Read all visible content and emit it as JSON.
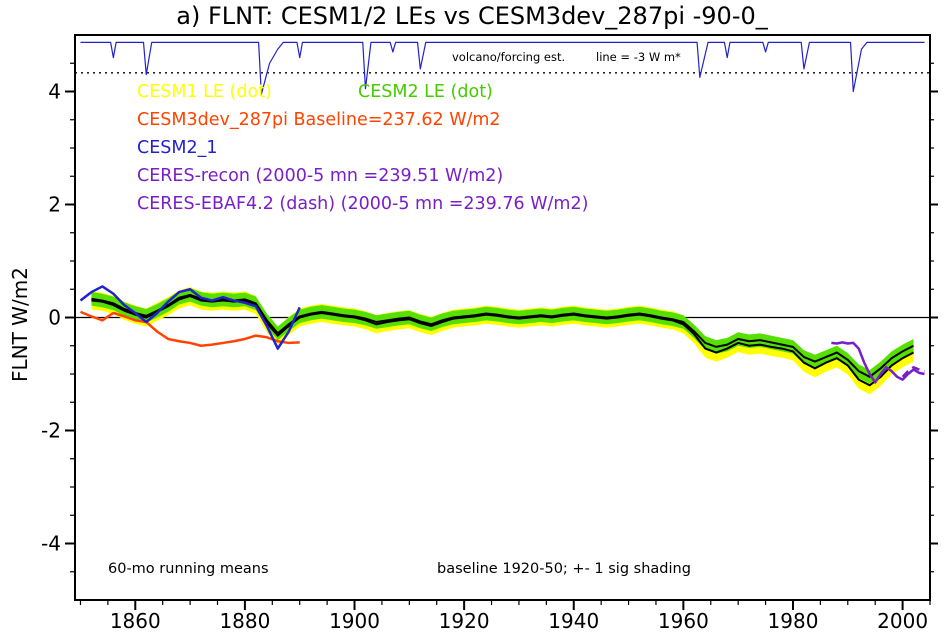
{
  "annotations": {
    "volcano_note": "volcano/forcing est.",
    "line_note": "line = -3 W m*",
    "bottom_left": "60-mo running means",
    "bottom_right": "baseline 1920-50; +- 1 sig shading"
  },
  "chart_data": {
    "type": "line",
    "title": "a) FLNT: CESM1/2 LEs vs CESM3dev_287pi -90-0_",
    "xlabel": "",
    "ylabel": "FLNT W/m2",
    "xlim": [
      1849,
      2005
    ],
    "ylim": [
      -5,
      5
    ],
    "x_major_ticks": [
      1860,
      1880,
      1900,
      1920,
      1940,
      1960,
      1980,
      2000
    ],
    "x_minor_step": 5,
    "y_major_ticks": [
      -4,
      -2,
      0,
      2,
      4
    ],
    "y_minor_step": 0.5,
    "grid": false,
    "reference_lines": {
      "zero": 0,
      "dotted": 4.33
    },
    "legend_position": "upper-left-inside",
    "legend": [
      {
        "label": "CESM1 LE (dot)",
        "color": "#ffff00"
      },
      {
        "label": "CESM2 LE (dot)",
        "color": "#44cc00"
      },
      {
        "label": "CESM3dev_287pi Baseline=237.62 W/m2",
        "color": "#ff4400"
      },
      {
        "label": "CESM2_1",
        "color": "#2222cc"
      },
      {
        "label": "CERES-recon (2000-5 mn =239.51 W/m2)",
        "color": "#7a1fc8"
      },
      {
        "label": "CERES-EBAF4.2 (dash) (2000-5 mn =239.76 W/m2)",
        "color": "#7a1fc8"
      }
    ],
    "series": [
      {
        "name": "CESM1 LE ensemble mean",
        "type": "band",
        "band_color": "#ffff00",
        "line_color": "#000000",
        "halfwidth": 0.16,
        "x": [
          1852,
          1854,
          1856,
          1858,
          1860,
          1862,
          1864,
          1866,
          1868,
          1870,
          1872,
          1874,
          1876,
          1878,
          1880,
          1882,
          1884,
          1886,
          1888,
          1890,
          1892,
          1894,
          1896,
          1898,
          1900,
          1902,
          1904,
          1906,
          1908,
          1910,
          1912,
          1914,
          1916,
          1918,
          1920,
          1922,
          1924,
          1926,
          1928,
          1930,
          1932,
          1934,
          1936,
          1938,
          1940,
          1942,
          1944,
          1946,
          1948,
          1950,
          1952,
          1954,
          1956,
          1958,
          1960,
          1962,
          1964,
          1966,
          1968,
          1970,
          1972,
          1974,
          1976,
          1978,
          1980,
          1982,
          1984,
          1986,
          1988,
          1990,
          1992,
          1994,
          1996,
          1998,
          2000,
          2002
        ],
        "y": [
          0.3,
          0.28,
          0.22,
          0.12,
          0.05,
          0.0,
          0.1,
          0.2,
          0.32,
          0.38,
          0.3,
          0.28,
          0.3,
          0.28,
          0.3,
          0.22,
          -0.1,
          -0.32,
          -0.15,
          0.0,
          0.05,
          0.08,
          0.05,
          0.02,
          0.0,
          -0.05,
          -0.12,
          -0.08,
          -0.05,
          -0.03,
          -0.1,
          -0.15,
          -0.08,
          -0.02,
          0.0,
          0.02,
          0.05,
          0.03,
          0.0,
          -0.02,
          0.0,
          0.02,
          0.0,
          0.03,
          0.05,
          0.02,
          0.0,
          -0.02,
          0.0,
          0.03,
          0.05,
          0.02,
          -0.02,
          -0.05,
          -0.12,
          -0.3,
          -0.55,
          -0.62,
          -0.55,
          -0.45,
          -0.5,
          -0.48,
          -0.52,
          -0.55,
          -0.6,
          -0.8,
          -0.9,
          -0.8,
          -0.72,
          -0.85,
          -1.1,
          -1.2,
          -1.05,
          -0.85,
          -0.72,
          -0.62
        ]
      },
      {
        "name": "CESM2 LE ensemble mean",
        "type": "band",
        "band_color": "#55e000",
        "line_color": "#000000",
        "halfwidth": 0.12,
        "x": [
          1852,
          1854,
          1856,
          1858,
          1860,
          1862,
          1864,
          1866,
          1868,
          1870,
          1872,
          1874,
          1876,
          1878,
          1880,
          1882,
          1884,
          1886,
          1888,
          1890,
          1892,
          1894,
          1896,
          1898,
          1900,
          1902,
          1904,
          1906,
          1908,
          1910,
          1912,
          1914,
          1916,
          1918,
          1920,
          1922,
          1924,
          1926,
          1928,
          1930,
          1932,
          1934,
          1936,
          1938,
          1940,
          1942,
          1944,
          1946,
          1948,
          1950,
          1952,
          1954,
          1956,
          1958,
          1960,
          1962,
          1964,
          1966,
          1968,
          1970,
          1972,
          1974,
          1976,
          1978,
          1980,
          1982,
          1984,
          1986,
          1988,
          1990,
          1992,
          1994,
          1996,
          1998,
          2000,
          2002
        ],
        "y": [
          0.33,
          0.3,
          0.25,
          0.15,
          0.08,
          0.03,
          0.12,
          0.22,
          0.35,
          0.4,
          0.33,
          0.3,
          0.32,
          0.3,
          0.32,
          0.25,
          -0.05,
          -0.28,
          -0.12,
          0.02,
          0.07,
          0.1,
          0.07,
          0.04,
          0.02,
          -0.02,
          -0.08,
          -0.05,
          -0.02,
          0.0,
          -0.07,
          -0.12,
          -0.05,
          0.0,
          0.02,
          0.04,
          0.07,
          0.05,
          0.02,
          0.0,
          0.02,
          0.04,
          0.02,
          0.05,
          0.07,
          0.04,
          0.02,
          0.0,
          0.02,
          0.05,
          0.07,
          0.04,
          0.0,
          -0.03,
          -0.08,
          -0.25,
          -0.45,
          -0.52,
          -0.48,
          -0.38,
          -0.42,
          -0.4,
          -0.44,
          -0.48,
          -0.52,
          -0.7,
          -0.78,
          -0.7,
          -0.62,
          -0.75,
          -0.95,
          -1.05,
          -0.9,
          -0.72,
          -0.6,
          -0.5
        ]
      },
      {
        "name": "CESM3dev_287pi",
        "type": "line",
        "color": "#ff4400",
        "width": 2.5,
        "x": [
          1850,
          1852,
          1854,
          1856,
          1858,
          1860,
          1862,
          1864,
          1866,
          1868,
          1870,
          1872,
          1874,
          1876,
          1878,
          1880,
          1882,
          1884,
          1886,
          1888,
          1890
        ],
        "y": [
          0.1,
          0.02,
          -0.05,
          0.08,
          0.02,
          -0.05,
          -0.08,
          -0.25,
          -0.38,
          -0.42,
          -0.45,
          -0.5,
          -0.48,
          -0.45,
          -0.42,
          -0.38,
          -0.32,
          -0.35,
          -0.42,
          -0.45,
          -0.44
        ]
      },
      {
        "name": "volcano forcing estimate",
        "type": "line",
        "color": "#2222cc",
        "width": 1.2,
        "x": [
          1850,
          1855.5,
          1856,
          1856.5,
          1861.5,
          1862,
          1863,
          1882.5,
          1883,
          1884.5,
          1886,
          1887,
          1889.5,
          1890,
          1890.5,
          1901.5,
          1902,
          1903,
          1906.5,
          1907,
          1907.5,
          1911.5,
          1912,
          1913,
          1962.5,
          1963,
          1964.5,
          1967.5,
          1968,
          1968.5,
          1974.5,
          1975,
          1975.5,
          1981.5,
          1982,
          1983,
          1990.5,
          1991,
          1992.5,
          1993.5,
          2004
        ],
        "y": [
          4.87,
          4.87,
          4.6,
          4.87,
          4.87,
          4.3,
          4.87,
          4.87,
          3.95,
          4.5,
          4.75,
          4.87,
          4.87,
          4.6,
          4.87,
          4.87,
          4.05,
          4.87,
          4.87,
          4.7,
          4.87,
          4.87,
          4.4,
          4.87,
          4.87,
          4.25,
          4.87,
          4.87,
          4.6,
          4.87,
          4.87,
          4.7,
          4.87,
          4.87,
          4.4,
          4.87,
          4.87,
          4.0,
          4.75,
          4.87,
          4.87
        ]
      },
      {
        "name": "CESM2_1",
        "type": "line",
        "color": "#2222cc",
        "width": 2.5,
        "x": [
          1850,
          1852,
          1854,
          1856,
          1858,
          1860,
          1862,
          1864,
          1866,
          1868,
          1870,
          1872,
          1874,
          1876,
          1878,
          1880,
          1882,
          1884,
          1886,
          1888,
          1890
        ],
        "y": [
          0.3,
          0.45,
          0.55,
          0.42,
          0.22,
          0.08,
          -0.08,
          0.08,
          0.28,
          0.45,
          0.5,
          0.35,
          0.3,
          0.36,
          0.3,
          0.26,
          0.2,
          -0.15,
          -0.55,
          -0.25,
          0.18
        ]
      },
      {
        "name": "CERES-recon",
        "type": "line",
        "color": "#7a1fc8",
        "width": 2.5,
        "x": [
          1987,
          1988,
          1989,
          1990,
          1991,
          1992,
          1993,
          1994,
          1995,
          1996,
          1997,
          1998,
          1999,
          2000,
          2001,
          2002,
          2003,
          2004
        ],
        "y": [
          -0.45,
          -0.46,
          -0.44,
          -0.46,
          -0.45,
          -0.55,
          -0.8,
          -1.0,
          -1.15,
          -1.0,
          -0.88,
          -0.95,
          -1.05,
          -1.1,
          -1.0,
          -0.92,
          -0.98,
          -1.0
        ]
      },
      {
        "name": "CERES-EBAF4.2",
        "type": "line",
        "color": "#7a1fc8",
        "width": 2.5,
        "dash": "8 5",
        "x": [
          2000,
          2001,
          2002,
          2003,
          2004
        ],
        "y": [
          -1.05,
          -0.95,
          -0.88,
          -0.92,
          -0.95
        ]
      }
    ]
  }
}
